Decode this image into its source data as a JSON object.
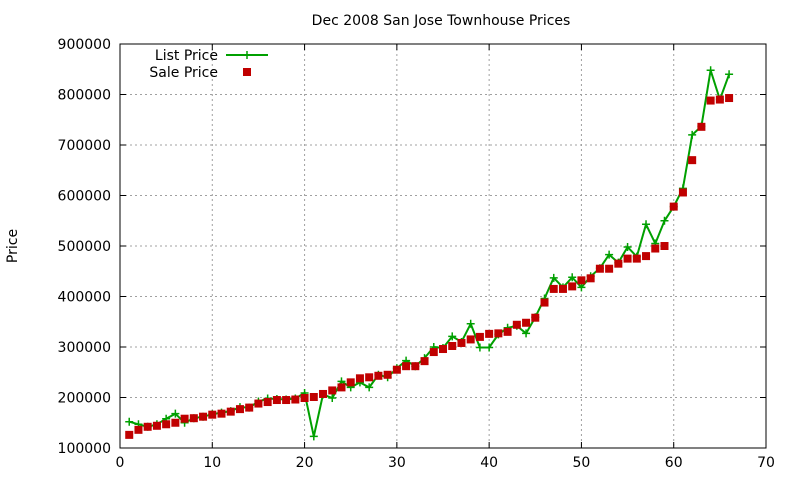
{
  "chart_data": {
    "type": "line",
    "title": "Dec 2008 San Jose Townhouse Prices",
    "xlabel": "",
    "ylabel": "Price",
    "xlim": [
      0,
      70
    ],
    "ylim": [
      100000,
      900000
    ],
    "xticks": [
      0,
      10,
      20,
      30,
      40,
      50,
      60,
      70
    ],
    "yticks": [
      100000,
      200000,
      300000,
      400000,
      500000,
      600000,
      700000,
      800000,
      900000
    ],
    "grid": true,
    "legend_position": "top-left",
    "series": [
      {
        "name": "List Price",
        "style": "line-plus",
        "color": "#00a000",
        "values": [
          [
            1,
            152000
          ],
          [
            2,
            147000
          ],
          [
            3,
            142000
          ],
          [
            4,
            147000
          ],
          [
            5,
            158000
          ],
          [
            6,
            168000
          ],
          [
            7,
            150000
          ],
          [
            8,
            159000
          ],
          [
            9,
            162000
          ],
          [
            10,
            167000
          ],
          [
            11,
            170000
          ],
          [
            12,
            173000
          ],
          [
            13,
            181000
          ],
          [
            14,
            180000
          ],
          [
            15,
            192000
          ],
          [
            16,
            198000
          ],
          [
            17,
            197000
          ],
          [
            18,
            196000
          ],
          [
            19,
            198000
          ],
          [
            20,
            209000
          ],
          [
            21,
            123000
          ],
          [
            22,
            206000
          ],
          [
            23,
            199000
          ],
          [
            24,
            232000
          ],
          [
            25,
            220000
          ],
          [
            26,
            230000
          ],
          [
            27,
            220000
          ],
          [
            28,
            245000
          ],
          [
            29,
            240000
          ],
          [
            30,
            258000
          ],
          [
            31,
            273000
          ],
          [
            32,
            262000
          ],
          [
            33,
            278000
          ],
          [
            34,
            300000
          ],
          [
            35,
            298000
          ],
          [
            36,
            321000
          ],
          [
            37,
            310000
          ],
          [
            38,
            346000
          ],
          [
            39,
            299000
          ],
          [
            40,
            299000
          ],
          [
            41,
            325000
          ],
          [
            42,
            338000
          ],
          [
            43,
            342000
          ],
          [
            44,
            327000
          ],
          [
            45,
            359000
          ],
          [
            46,
            396000
          ],
          [
            47,
            437000
          ],
          [
            48,
            418000
          ],
          [
            49,
            438000
          ],
          [
            50,
            418000
          ],
          [
            51,
            440000
          ],
          [
            52,
            456000
          ],
          [
            53,
            483000
          ],
          [
            54,
            467000
          ],
          [
            55,
            498000
          ],
          [
            56,
            479000
          ],
          [
            57,
            543000
          ],
          [
            58,
            505000
          ],
          [
            59,
            550000
          ],
          [
            60,
            578000
          ],
          [
            61,
            614000
          ],
          [
            62,
            720000
          ],
          [
            63,
            737000
          ],
          [
            64,
            848000
          ],
          [
            65,
            790000
          ],
          [
            66,
            840000
          ]
        ]
      },
      {
        "name": "Sale Price",
        "style": "square",
        "color": "#c00000",
        "values": [
          [
            1,
            126000
          ],
          [
            2,
            136000
          ],
          [
            3,
            142000
          ],
          [
            4,
            144000
          ],
          [
            5,
            147000
          ],
          [
            6,
            150000
          ],
          [
            7,
            158000
          ],
          [
            8,
            159000
          ],
          [
            9,
            162000
          ],
          [
            10,
            166000
          ],
          [
            11,
            168000
          ],
          [
            12,
            172000
          ],
          [
            13,
            177000
          ],
          [
            14,
            180000
          ],
          [
            15,
            188000
          ],
          [
            16,
            191000
          ],
          [
            17,
            195000
          ],
          [
            18,
            195000
          ],
          [
            19,
            196000
          ],
          [
            20,
            199000
          ],
          [
            21,
            201000
          ],
          [
            22,
            207000
          ],
          [
            23,
            214000
          ],
          [
            24,
            220000
          ],
          [
            25,
            230000
          ],
          [
            26,
            238000
          ],
          [
            27,
            240000
          ],
          [
            28,
            243000
          ],
          [
            29,
            245000
          ],
          [
            30,
            255000
          ],
          [
            31,
            262000
          ],
          [
            32,
            262000
          ],
          [
            33,
            272000
          ],
          [
            34,
            290000
          ],
          [
            35,
            296000
          ],
          [
            36,
            302000
          ],
          [
            37,
            308000
          ],
          [
            38,
            315000
          ],
          [
            39,
            320000
          ],
          [
            40,
            326000
          ],
          [
            41,
            327000
          ],
          [
            42,
            330000
          ],
          [
            43,
            344000
          ],
          [
            44,
            348000
          ],
          [
            45,
            358000
          ],
          [
            46,
            388000
          ],
          [
            47,
            415000
          ],
          [
            48,
            415000
          ],
          [
            49,
            420000
          ],
          [
            50,
            432000
          ],
          [
            51,
            436000
          ],
          [
            52,
            455000
          ],
          [
            53,
            455000
          ],
          [
            54,
            465000
          ],
          [
            55,
            475000
          ],
          [
            56,
            475000
          ],
          [
            57,
            480000
          ],
          [
            58,
            495000
          ],
          [
            59,
            500000
          ],
          [
            60,
            578000
          ],
          [
            61,
            606000
          ],
          [
            62,
            670000
          ],
          [
            63,
            736000
          ],
          [
            64,
            788000
          ],
          [
            65,
            790000
          ],
          [
            66,
            793000
          ]
        ]
      }
    ]
  }
}
